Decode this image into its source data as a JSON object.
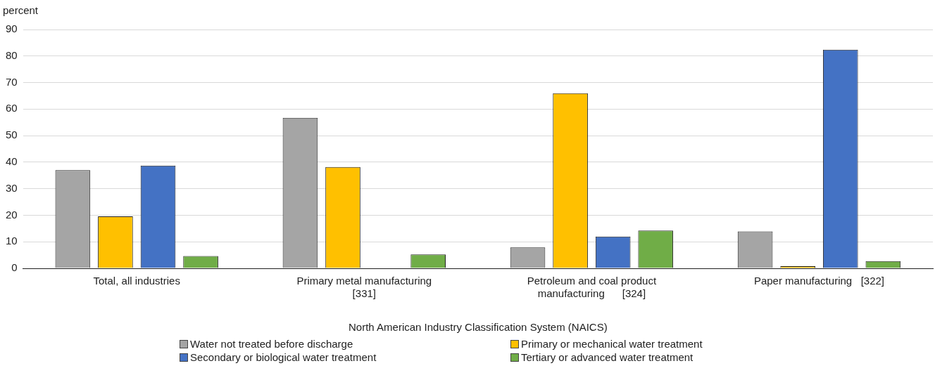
{
  "chart_data": {
    "type": "bar",
    "ylabel": "percent",
    "xlabel": "North American Industry Classification System (NAICS)",
    "categories": [
      "Total, all industries",
      "Primary metal manufacturing\n[331]",
      "Petroleum and coal product\nmanufacturing      [324]",
      "Paper manufacturing   [322]"
    ],
    "series": [
      {
        "name": "Water not treated before discharge",
        "color": "#a5a5a5",
        "values": [
          37,
          56.7,
          7.9,
          13.9
        ]
      },
      {
        "name": "Primary or mechanical water treatment",
        "color": "#ffc000",
        "values": [
          19.6,
          38.2,
          66,
          0.8
        ]
      },
      {
        "name": "Secondary or biological water treatment",
        "color": "#4472c4",
        "values": [
          38.7,
          0,
          12,
          82.4
        ]
      },
      {
        "name": "Tertiary or advanced water treatment",
        "color": "#70ad47",
        "values": [
          4.6,
          5.2,
          14.2,
          2.7
        ]
      }
    ],
    "ylim": [
      0,
      90
    ],
    "yticks": [
      0,
      10,
      20,
      30,
      40,
      50,
      60,
      70,
      80,
      90
    ],
    "grid": "y",
    "legend": "bottom"
  }
}
